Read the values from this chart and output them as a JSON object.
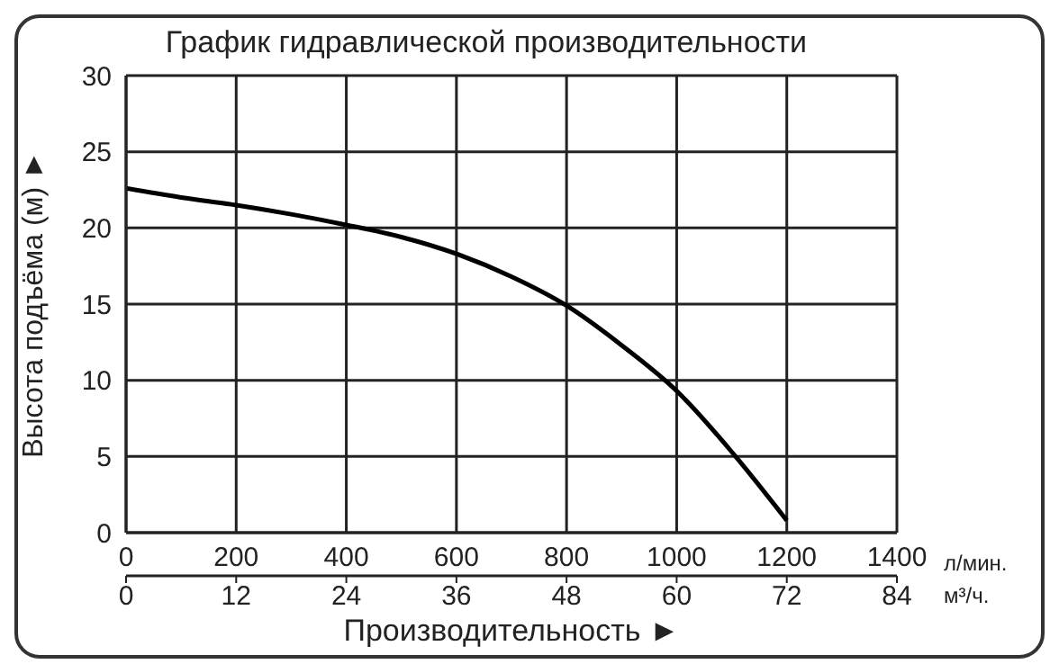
{
  "chart_data": {
    "type": "line",
    "title": "График гидравлической производительности",
    "xlabel": "Производительность ►",
    "ylabel": "Высота подъёма (м) ►",
    "annotations": [
      "л/мин.",
      "м³/ч."
    ],
    "x": [
      0,
      100,
      200,
      300,
      400,
      500,
      600,
      700,
      800,
      900,
      1000,
      1100,
      1200
    ],
    "series": [
      {
        "color": "#000000",
        "values": [
          22.6,
          22.0,
          21.5,
          20.9,
          20.2,
          19.4,
          18.3,
          16.8,
          14.9,
          12.3,
          9.3,
          5.3,
          0.8
        ]
      }
    ],
    "xlim": [
      0,
      1400
    ],
    "xticks": [
      0,
      200,
      400,
      600,
      800,
      1000,
      1200,
      1400
    ],
    "x2lim": [
      0,
      84
    ],
    "x2ticks": [
      0,
      12,
      24,
      36,
      48,
      60,
      72,
      84
    ],
    "ylim": [
      0,
      30
    ],
    "yticks": [
      0,
      5,
      10,
      15,
      20,
      25,
      30
    ],
    "grid": true,
    "marker": "none",
    "line_style": "solid",
    "legend": false
  }
}
